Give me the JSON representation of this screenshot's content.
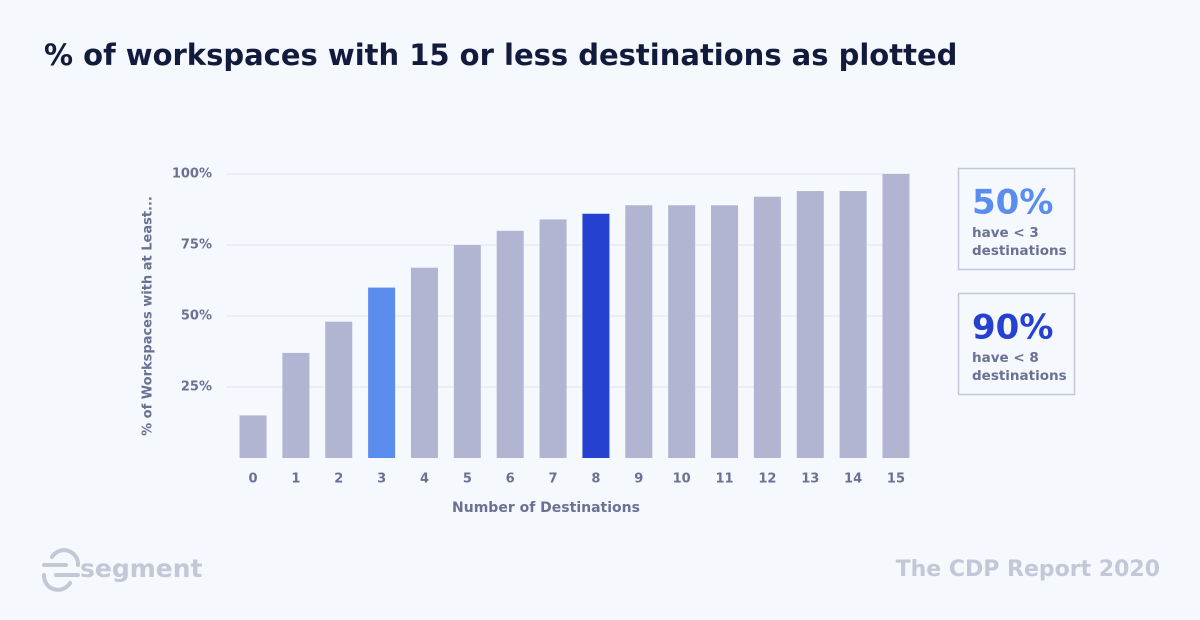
{
  "chart_data": {
    "type": "bar",
    "title": "% of workspaces with 15 or less destinations as plotted",
    "x_label": "Number of Destinations",
    "y_label": "% of Workspaces with at Least...",
    "categories": [
      "0",
      "1",
      "2",
      "3",
      "4",
      "5",
      "6",
      "7",
      "8",
      "9",
      "10",
      "11",
      "12",
      "13",
      "14",
      "15"
    ],
    "values": [
      15,
      37,
      48,
      60,
      67,
      75,
      80,
      84,
      86,
      89,
      89,
      89,
      92,
      94,
      94,
      100
    ],
    "colors": [
      "#b1b5d1",
      "#b1b5d1",
      "#b1b5d1",
      "#5b8def",
      "#b1b5d1",
      "#b1b5d1",
      "#b1b5d1",
      "#b1b5d1",
      "#2541d0",
      "#b1b5d1",
      "#b1b5d1",
      "#b1b5d1",
      "#b1b5d1",
      "#b1b5d1",
      "#b1b5d1",
      "#b1b5d1"
    ],
    "ylim": [
      0,
      100
    ],
    "yticks": [
      {
        "value": 25,
        "label": "25%"
      },
      {
        "value": 50,
        "label": "50%"
      },
      {
        "value": 75,
        "label": "75%"
      },
      {
        "value": 100,
        "label": "100%"
      }
    ],
    "grid": true,
    "callouts": [
      {
        "value": "50%",
        "lines": [
          "have < 3",
          "destinations"
        ],
        "color": "#5b8def"
      },
      {
        "value": "90%",
        "lines": [
          "have < 8",
          "destinations"
        ],
        "color": "#2541d0"
      }
    ]
  },
  "footer": {
    "brand": "segment",
    "report": "The CDP Report 2020"
  }
}
